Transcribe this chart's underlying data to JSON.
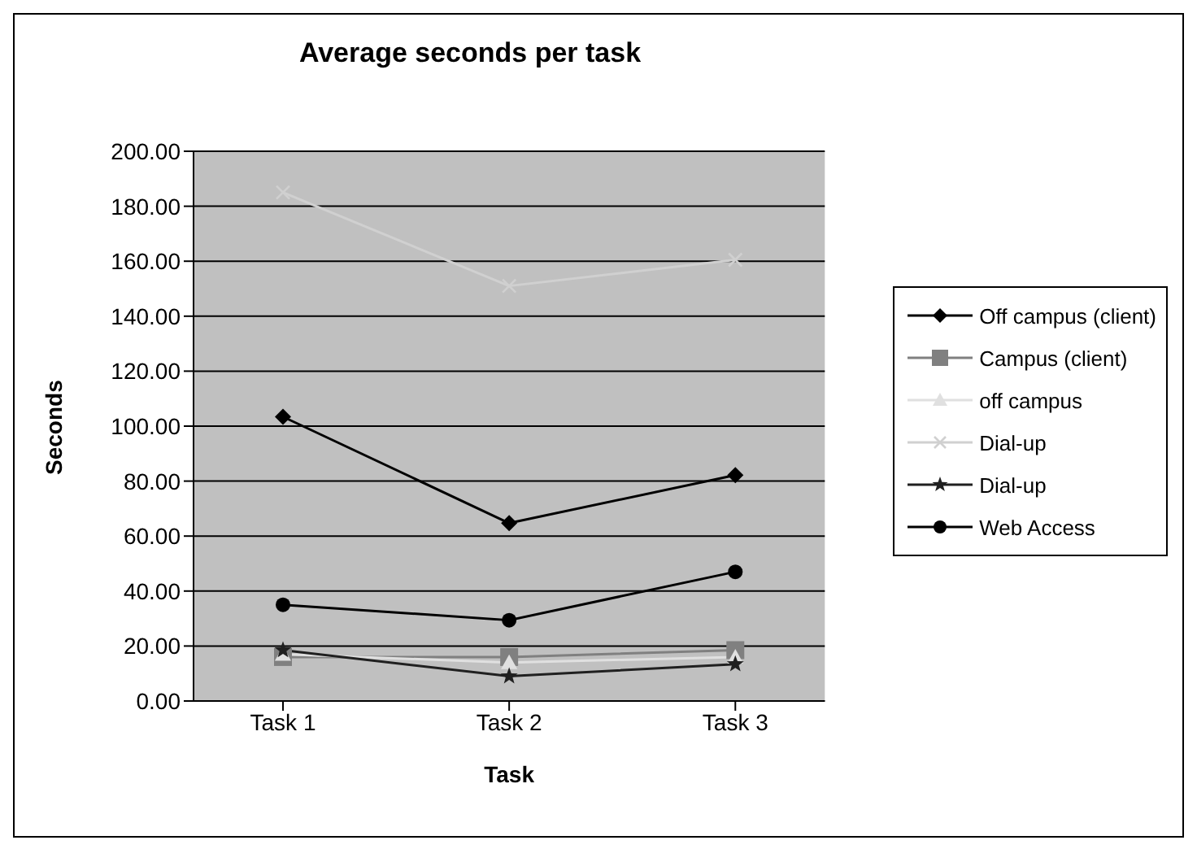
{
  "chart_data": {
    "type": "line",
    "title": "Average seconds per task",
    "xlabel": "Task",
    "ylabel": "Seconds",
    "categories": [
      "Task 1",
      "Task 2",
      "Task 3"
    ],
    "series": [
      {
        "name": "Off campus (client)",
        "color": "#000000",
        "marker": "diamond",
        "values": [
          103.4,
          64.7,
          82.2
        ]
      },
      {
        "name": "Campus (client)",
        "color": "#808080",
        "marker": "square",
        "values": [
          16,
          16,
          18.5
        ]
      },
      {
        "name": "off campus",
        "color": "#e0e0e0",
        "marker": "triangle",
        "values": [
          17,
          14,
          16
        ]
      },
      {
        "name": "Dial-up",
        "color": "#d0d0d0",
        "marker": "cross",
        "values": [
          185,
          151,
          160.5
        ]
      },
      {
        "name": "Dial-up",
        "color": "#202020",
        "marker": "star",
        "values": [
          18.5,
          9,
          13.4
        ]
      },
      {
        "name": "Web Access",
        "color": "#000000",
        "marker": "circle",
        "values": [
          35,
          29.4,
          47
        ]
      }
    ],
    "ylim": [
      0,
      200
    ],
    "yticks": [
      {
        "value": 0,
        "label": "0.00"
      },
      {
        "value": 20,
        "label": "20.00"
      },
      {
        "value": 40,
        "label": "40.00"
      },
      {
        "value": 60,
        "label": "60.00"
      },
      {
        "value": 80,
        "label": "80.00"
      },
      {
        "value": 100,
        "label": "100.00"
      },
      {
        "value": 120,
        "label": "120.00"
      },
      {
        "value": 140,
        "label": "140.00"
      },
      {
        "value": 160,
        "label": "160.00"
      },
      {
        "value": 180,
        "label": "180.00"
      },
      {
        "value": 200,
        "label": "200.00"
      }
    ],
    "grid": "y",
    "legend": "right"
  }
}
